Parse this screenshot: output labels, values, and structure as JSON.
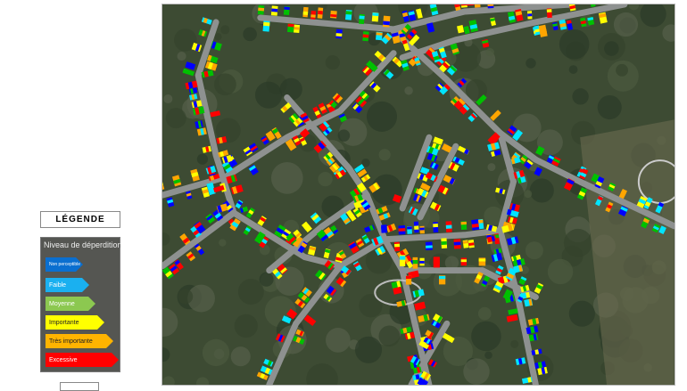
{
  "legend": {
    "title": "LÉGENDE",
    "heading": "Niveau de déperdition",
    "items": [
      {
        "label": "Non perceptible",
        "color": "#0a6fd0"
      },
      {
        "label": "Faible",
        "color": "#1ab0f0"
      },
      {
        "label": "Moyenne",
        "color": "#8cc850"
      },
      {
        "label": "Importante",
        "color": "#ffff00"
      },
      {
        "label": "Très importante",
        "color": "#ffb400"
      },
      {
        "label": "Excessive",
        "color": "#ff0000"
      }
    ]
  },
  "map": {
    "type": "aerial thermal heat-loss map",
    "palette": [
      "#0000ff",
      "#00e5ff",
      "#00c000",
      "#ffff00",
      "#ffa500",
      "#ff0000"
    ]
  }
}
